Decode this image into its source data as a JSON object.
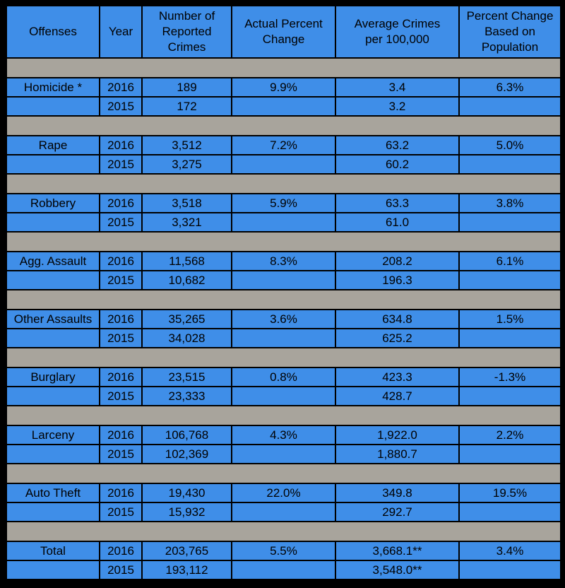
{
  "table": {
    "header": [
      [
        "Offenses"
      ],
      [
        "Year"
      ],
      [
        "Number of",
        "Reported",
        "Crimes"
      ],
      [
        "Actual Percent",
        "Change"
      ],
      [
        "Average Crimes",
        "per 100,000"
      ],
      [
        "Percent Change",
        "Based on",
        "Population"
      ]
    ],
    "groups": [
      {
        "offense": "Homicide *",
        "rows": [
          {
            "year": "2016",
            "reported": "189",
            "change": "9.9%",
            "average": "3.4",
            "pop_change": "6.3%"
          },
          {
            "year": "2015",
            "reported": "172",
            "average": "3.2"
          }
        ]
      },
      {
        "offense": "Rape",
        "rows": [
          {
            "year": "2016",
            "reported": "3,512",
            "change": "7.2%",
            "average": "63.2",
            "pop_change": "5.0%"
          },
          {
            "year": "2015",
            "reported": "3,275",
            "average": "60.2"
          }
        ]
      },
      {
        "offense": "Robbery",
        "rows": [
          {
            "year": "2016",
            "reported": "3,518",
            "change": "5.9%",
            "average": "63.3",
            "pop_change": "3.8%"
          },
          {
            "year": "2015",
            "reported": "3,321",
            "average": "61.0"
          }
        ]
      },
      {
        "offense": "Agg. Assault",
        "rows": [
          {
            "year": "2016",
            "reported": "11,568",
            "change": "8.3%",
            "average": "208.2",
            "pop_change": "6.1%"
          },
          {
            "year": "2015",
            "reported": "10,682",
            "average": "196.3"
          }
        ]
      },
      {
        "offense": "Other Assaults",
        "rows": [
          {
            "year": "2016",
            "reported": "35,265",
            "change": "3.6%",
            "average": "634.8",
            "pop_change": "1.5%"
          },
          {
            "year": "2015",
            "reported": "34,028",
            "average": "625.2"
          }
        ]
      },
      {
        "offense": "Burglary",
        "rows": [
          {
            "year": "2016",
            "reported": "23,515",
            "change": "0.8%",
            "average": "423.3",
            "pop_change": "-1.3%"
          },
          {
            "year": "2015",
            "reported": "23,333",
            "average": "428.7"
          }
        ]
      },
      {
        "offense": "Larceny",
        "rows": [
          {
            "year": "2016",
            "reported": "106,768",
            "change": "4.3%",
            "average": "1,922.0",
            "pop_change": "2.2%"
          },
          {
            "year": "2015",
            "reported": "102,369",
            "average": "1,880.7"
          }
        ]
      },
      {
        "offense": "Auto Theft",
        "rows": [
          {
            "year": "2016",
            "reported": "19,430",
            "change": "22.0%",
            "average": "349.8",
            "pop_change": "19.5%"
          },
          {
            "year": "2015",
            "reported": "15,932",
            "average": "292.7"
          }
        ]
      },
      {
        "offense": "Total",
        "rows": [
          {
            "year": "2016",
            "reported": "203,765",
            "change": "5.5%",
            "average": "3,668.1**",
            "pop_change": "3.4%"
          },
          {
            "year": "2015",
            "reported": "193,112",
            "average": "3,548.0**"
          }
        ]
      }
    ]
  }
}
